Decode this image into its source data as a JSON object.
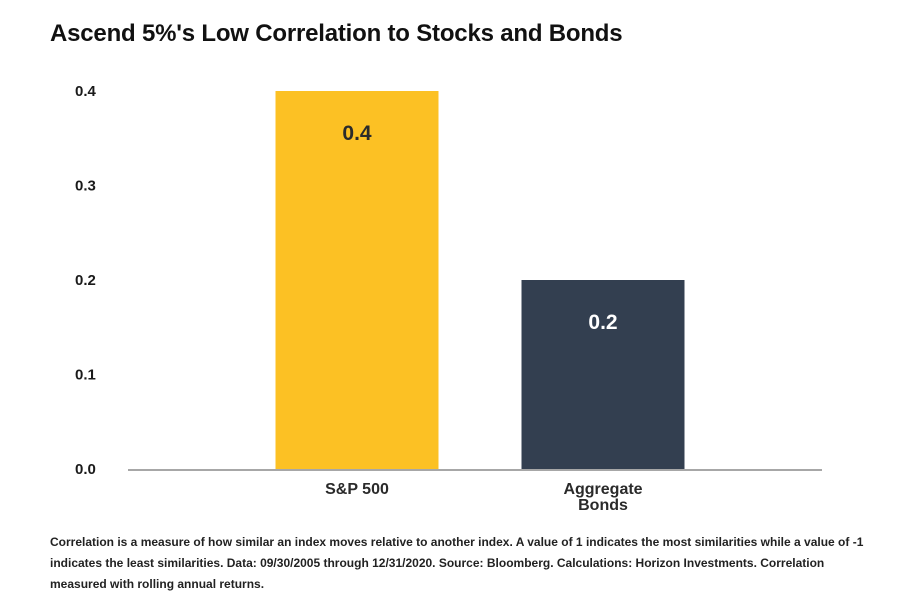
{
  "title": "Ascend 5%'s Low Correlation to Stocks and Bonds",
  "footnote": "Correlation is a measure of how similar an index moves relative to another index. A value of 1 indicates the most similarities while a value of -1 indicates the least similarities. Data: 09/30/2005 through 12/31/2020. Source: Bloomberg. Calculations: Horizon Investments. Correlation measured with rolling annual returns.",
  "chart_data": {
    "type": "bar",
    "title": "Ascend 5%'s Low Correlation to Stocks and Bonds",
    "xlabel": "",
    "ylabel": "",
    "categories": [
      [
        "S&P 500"
      ],
      [
        "Aggregate",
        "Bonds"
      ]
    ],
    "values": [
      0.4,
      0.2
    ],
    "data_labels": [
      "0.4",
      "0.2"
    ],
    "bar_colors": [
      "#FCC124",
      "#333F50"
    ],
    "label_colors": [
      "#2b2b2b",
      "#ffffff"
    ],
    "yticks": [
      "0.0",
      "0.1",
      "0.2",
      "0.3",
      "0.4"
    ],
    "ylim": [
      0,
      0.4
    ],
    "grid": false,
    "legend": "none"
  }
}
